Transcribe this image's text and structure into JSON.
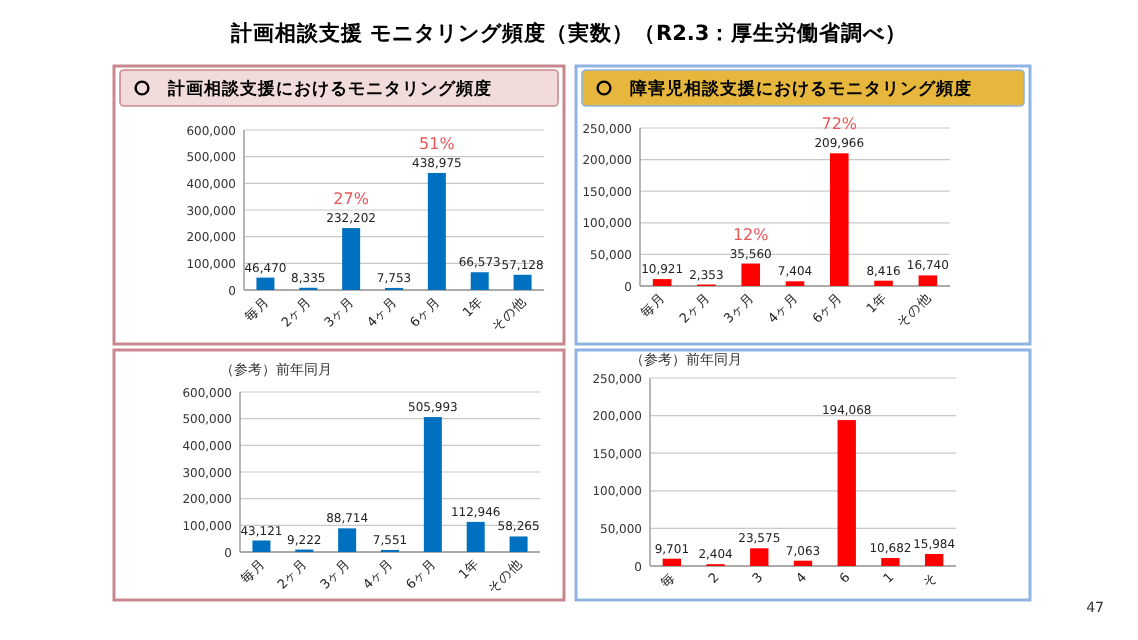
{
  "chart_data": [
    {
      "type": "bar",
      "title": "計画相談支援におけるモニタリング頻度",
      "annotations": [
        "計画相談支援 モニタリング頻度（実数）（R2.3：厚生労働省調べ）",
        {
          "text": "27%",
          "x": "3ヶ月",
          "y": 232202
        },
        {
          "text": "51%",
          "x": "6ヶ月",
          "y": 438975
        }
      ],
      "categories": [
        "毎月",
        "2ヶ月",
        "3ヶ月",
        "4ヶ月",
        "6ヶ月",
        "1年",
        "その他"
      ],
      "values": [
        46470,
        8335,
        232202,
        7753,
        438975,
        66573,
        57128
      ],
      "value_labels": [
        "46,470",
        "8,335",
        "232,202",
        "7,753",
        "438,975",
        "66,573",
        "57,128"
      ],
      "color": "#0070c0",
      "ylim": [
        0,
        600000
      ],
      "yticks": [
        {
          "value": 0,
          "label": "0"
        },
        {
          "value": 100000,
          "label": "100,000"
        },
        {
          "value": 200000,
          "label": "200,000"
        },
        {
          "value": 300000,
          "label": "300,000"
        },
        {
          "value": 400000,
          "label": "400,000"
        },
        {
          "value": 500000,
          "label": "500,000"
        },
        {
          "value": 600000,
          "label": "600,000"
        }
      ],
      "grid": "y"
    },
    {
      "type": "bar",
      "title": "障害児相談支援におけるモニタリング頻度",
      "annotations": [
        {
          "text": "12%",
          "x": "3ヶ月",
          "y": 35560
        },
        {
          "text": "72%",
          "x": "6ヶ月",
          "y": 209966
        }
      ],
      "categories": [
        "毎月",
        "2ヶ月",
        "3ヶ月",
        "4ヶ月",
        "6ヶ月",
        "1年",
        "その他"
      ],
      "values": [
        10921,
        2353,
        35560,
        7404,
        209966,
        8416,
        16740
      ],
      "value_labels": [
        "10,921",
        "2,353",
        "35,560",
        "7,404",
        "209,966",
        "8,416",
        "16,740"
      ],
      "color": "#ff0000",
      "ylim": [
        0,
        250000
      ],
      "yticks": [
        {
          "value": 0,
          "label": "0"
        },
        {
          "value": 50000,
          "label": "50,000"
        },
        {
          "value": 100000,
          "label": "100,000"
        },
        {
          "value": 150000,
          "label": "150,000"
        },
        {
          "value": 200000,
          "label": "200,000"
        },
        {
          "value": 250000,
          "label": "250,000"
        }
      ],
      "grid": "y"
    },
    {
      "type": "bar",
      "title": "（参考）前年同月",
      "categories": [
        "毎月",
        "2ヶ月",
        "3ヶ月",
        "4ヶ月",
        "6ヶ月",
        "1年",
        "その他"
      ],
      "values": [
        43121,
        9222,
        88714,
        7551,
        505993,
        112946,
        58265
      ],
      "value_labels": [
        "43,121",
        "9,222",
        "88,714",
        "7,551",
        "505,993",
        "112,946",
        "58,265"
      ],
      "color": "#0070c0",
      "ylim": [
        0,
        600000
      ],
      "yticks": [
        {
          "value": 0,
          "label": "0"
        },
        {
          "value": 100000,
          "label": "100,000"
        },
        {
          "value": 200000,
          "label": "200,000"
        },
        {
          "value": 300000,
          "label": "300,000"
        },
        {
          "value": 400000,
          "label": "400,000"
        },
        {
          "value": 500000,
          "label": "500,000"
        },
        {
          "value": 600000,
          "label": "600,000"
        }
      ],
      "grid": "y"
    },
    {
      "type": "bar",
      "title": "（参考）前年同月",
      "annotations": [
        "47"
      ],
      "categories": [
        "毎",
        "2",
        "3",
        "4",
        "6",
        "1",
        "そ"
      ],
      "values": [
        9701,
        2404,
        23575,
        7063,
        194068,
        10682,
        15984
      ],
      "value_labels": [
        "9,701",
        "2,404",
        "23,575",
        "7,063",
        "194,068",
        "10,682",
        "15,984"
      ],
      "color": "#ff0000",
      "ylim": [
        0,
        250000
      ],
      "yticks": [
        {
          "value": 0,
          "label": "0"
        },
        {
          "value": 50000,
          "label": "50,000"
        },
        {
          "value": 100000,
          "label": "100,000"
        },
        {
          "value": 150000,
          "label": "150,000"
        },
        {
          "value": 200000,
          "label": "200,000"
        },
        {
          "value": 250000,
          "label": "250,000"
        }
      ],
      "grid": "y"
    }
  ]
}
